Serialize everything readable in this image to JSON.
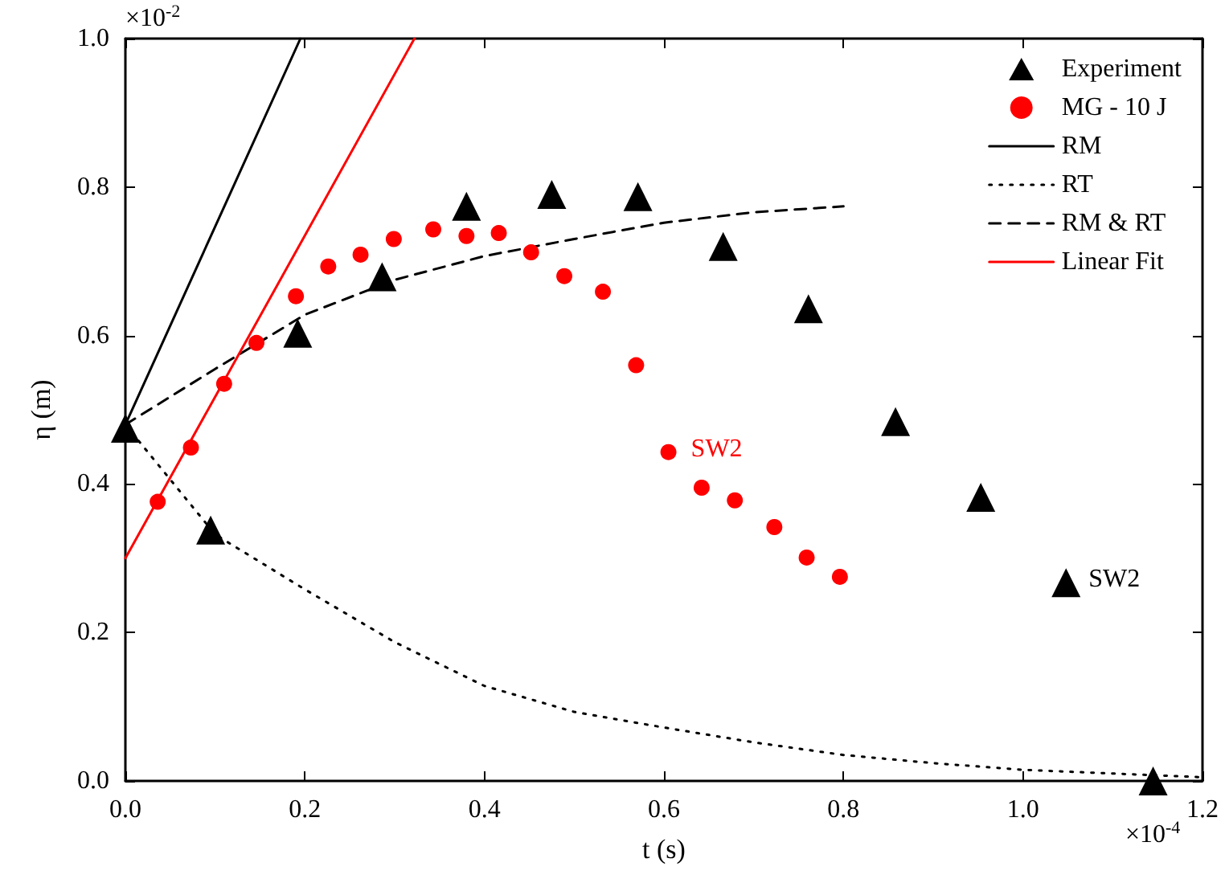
{
  "chart_data": {
    "type": "scatter",
    "xlabel": "t (s)",
    "ylabel": "η (m)",
    "xlim": [
      0,
      1.2
    ],
    "ylim": [
      0,
      1.0
    ],
    "xticks": [
      {
        "value": 0,
        "label": "0.0"
      },
      {
        "value": 0.2,
        "label": "0.2"
      },
      {
        "value": 0.4,
        "label": "0.4"
      },
      {
        "value": 0.6,
        "label": "0.6"
      },
      {
        "value": 0.8,
        "label": "0.8"
      },
      {
        "value": 1.0,
        "label": "1.0"
      },
      {
        "value": 1.2,
        "label": "1.2"
      }
    ],
    "yticks": [
      {
        "value": 0,
        "label": "0.0"
      },
      {
        "value": 0.2,
        "label": "0.2"
      },
      {
        "value": 0.4,
        "label": "0.4"
      },
      {
        "value": 0.6,
        "label": "0.6"
      },
      {
        "value": 0.8,
        "label": "0.8"
      },
      {
        "value": 1.0,
        "label": "1.0"
      }
    ],
    "grid": false,
    "legend": "top right",
    "annotations": [
      "×10$^{-2}$",
      "×10$^{-4}$",
      {
        "text": "SW2",
        "x": 0.605,
        "y": 0.443
      },
      {
        "text": "SW2",
        "x": 1.048,
        "y": 0.267
      }
    ],
    "series": [
      {
        "name": "Experiment",
        "marker": "triangle",
        "color": "#000000",
        "x": [
          0,
          0.095,
          0.192,
          0.286,
          0.38,
          0.475,
          0.571,
          0.666,
          0.761,
          0.858,
          0.953,
          1.048,
          1.145
        ],
        "values": [
          0.475,
          0.338,
          0.603,
          0.679,
          0.774,
          0.79,
          0.787,
          0.72,
          0.636,
          0.484,
          0.382,
          0.267,
          0
        ]
      },
      {
        "name": "MG - 10 J",
        "marker": "circle",
        "color": "#ff0000",
        "x": [
          0.036,
          0.073,
          0.11,
          0.146,
          0.19,
          0.226,
          0.262,
          0.299,
          0.343,
          0.38,
          0.416,
          0.452,
          0.489,
          0.532,
          0.569,
          0.605,
          0.642,
          0.679,
          0.723,
          0.759,
          0.796
        ],
        "values": [
          0.376,
          0.449,
          0.535,
          0.59,
          0.653,
          0.693,
          0.709,
          0.73,
          0.743,
          0.734,
          0.738,
          0.712,
          0.68,
          0.659,
          0.56,
          0.443,
          0.395,
          0.378,
          0.342,
          0.301,
          0.275
        ]
      },
      {
        "name": "RM",
        "type": "line",
        "marker": "none",
        "line_style": "solid",
        "color": "#000000",
        "x": [
          0,
          0.195
        ],
        "values": [
          0.48,
          1.0
        ]
      },
      {
        "name": "RT",
        "type": "line",
        "marker": "none",
        "line_style": "dotted",
        "color": "#000000",
        "x": [
          0,
          0.1,
          0.2,
          0.3,
          0.4,
          0.5,
          0.6,
          0.7,
          0.8,
          0.9,
          1.0,
          1.1,
          1.2
        ],
        "values": [
          0.48,
          0.332,
          0.258,
          0.187,
          0.128,
          0.093,
          0.072,
          0.052,
          0.035,
          0.024,
          0.015,
          0.01,
          0.005
        ]
      },
      {
        "name": "RM & RT",
        "type": "line",
        "marker": "none",
        "line_style": "dashed",
        "color": "#000000",
        "x": [
          0,
          0.1,
          0.2,
          0.3,
          0.4,
          0.5,
          0.6,
          0.7,
          0.8
        ],
        "values": [
          0.48,
          0.555,
          0.628,
          0.675,
          0.707,
          0.73,
          0.752,
          0.766,
          0.774
        ]
      },
      {
        "name": "Linear Fit",
        "type": "line",
        "marker": "none",
        "line_style": "solid",
        "color": "#ff0000",
        "x": [
          0,
          0.322
        ],
        "values": [
          0.3,
          1.0
        ]
      }
    ]
  }
}
